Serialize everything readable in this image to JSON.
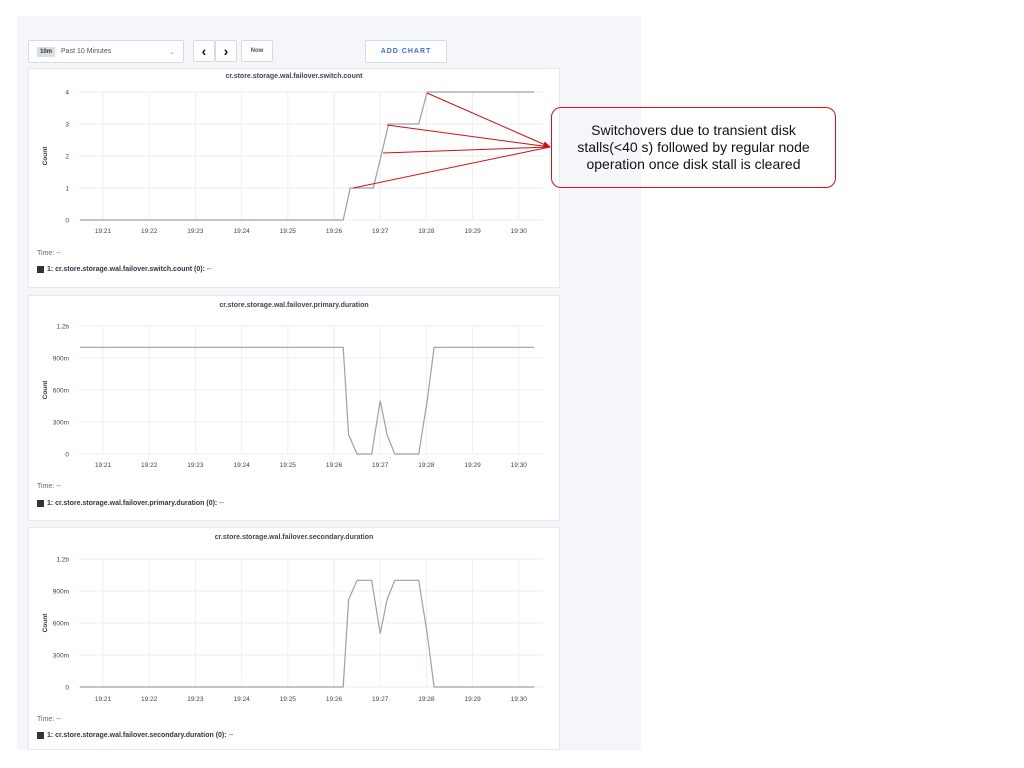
{
  "controls": {
    "range_badge": "10m",
    "range_label": "Past 10 Minutes",
    "prev_icon": "chevron-left-icon",
    "next_icon": "chevron-right-icon",
    "now_label": "Now",
    "add_chart_label": "ADD CHART"
  },
  "annotation": {
    "text": "Switchovers due to transient disk stalls(<40 s) followed by regular node operation once disk stall is cleared",
    "color": "#d01010"
  },
  "chart_data": [
    {
      "type": "line",
      "title": "cr.store.storage.wal.failover.switch.count",
      "ylabel": "Count",
      "ylim": [
        0,
        4
      ],
      "yticks": [
        {
          "v": 0,
          "label": "0"
        },
        {
          "v": 1,
          "label": "1"
        },
        {
          "v": 2,
          "label": "2"
        },
        {
          "v": 3,
          "label": "3"
        },
        {
          "v": 4,
          "label": "4"
        }
      ],
      "xticks": [
        "19:21",
        "19:22",
        "19:23",
        "19:24",
        "19:25",
        "19:26",
        "19:27",
        "19:28",
        "19:29",
        "19:30"
      ],
      "x": [
        "19:20:30",
        "19:26:12",
        "19:26:21",
        "19:26:51",
        "19:27:11",
        "19:27:50",
        "19:28:01",
        "19:30:20"
      ],
      "values": [
        0,
        0,
        1,
        1,
        3,
        3,
        4,
        4
      ],
      "time_label": "Time:",
      "time_value": "--",
      "legend": "1: cr.store.storage.wal.failover.switch.count (0):",
      "legend_value": "--",
      "line_color": "#9aa0ac"
    },
    {
      "type": "line",
      "title": "cr.store.storage.wal.failover.primary.duration",
      "ylabel": "Count",
      "ylim": [
        0,
        1.2
      ],
      "yticks": [
        {
          "v": 0,
          "label": "0"
        },
        {
          "v": 0.3,
          "label": "300m"
        },
        {
          "v": 0.6,
          "label": "600m"
        },
        {
          "v": 0.9,
          "label": "900m"
        },
        {
          "v": 1.2,
          "label": "1.2b"
        }
      ],
      "xticks": [
        "19:21",
        "19:22",
        "19:23",
        "19:24",
        "19:25",
        "19:26",
        "19:27",
        "19:28",
        "19:29",
        "19:30"
      ],
      "x": [
        "19:20:30",
        "19:26:12",
        "19:26:19",
        "19:26:30",
        "19:26:49",
        "19:27:00",
        "19:27:09",
        "19:27:19",
        "19:27:50",
        "19:28:01",
        "19:28:10",
        "19:30:20"
      ],
      "values": [
        1,
        1,
        0.18,
        0,
        0,
        0.5,
        0.18,
        0,
        0,
        0.5,
        1,
        1
      ],
      "time_label": "Time:",
      "time_value": "--",
      "legend": "1: cr.store.storage.wal.failover.primary.duration (0):",
      "legend_value": "--",
      "line_color": "#9aa0ac"
    },
    {
      "type": "line",
      "title": "cr.store.storage.wal.failover.secondary.duration",
      "ylabel": "Count",
      "ylim": [
        0,
        1.2
      ],
      "yticks": [
        {
          "v": 0,
          "label": "0"
        },
        {
          "v": 0.3,
          "label": "300m"
        },
        {
          "v": 0.6,
          "label": "600m"
        },
        {
          "v": 0.9,
          "label": "900m"
        },
        {
          "v": 1.2,
          "label": "1.2b"
        }
      ],
      "xticks": [
        "19:21",
        "19:22",
        "19:23",
        "19:24",
        "19:25",
        "19:26",
        "19:27",
        "19:28",
        "19:29",
        "19:30"
      ],
      "x": [
        "19:20:30",
        "19:26:12",
        "19:26:19",
        "19:26:30",
        "19:26:49",
        "19:27:00",
        "19:27:09",
        "19:27:19",
        "19:27:50",
        "19:28:01",
        "19:28:10",
        "19:30:20"
      ],
      "values": [
        0,
        0,
        0.82,
        1,
        1,
        0.5,
        0.82,
        1,
        1,
        0.5,
        0,
        0
      ],
      "time_label": "Time:",
      "time_value": "--",
      "legend": "1: cr.store.storage.wal.failover.secondary.duration (0):",
      "legend_value": "--",
      "line_color": "#9aa0ac"
    }
  ]
}
